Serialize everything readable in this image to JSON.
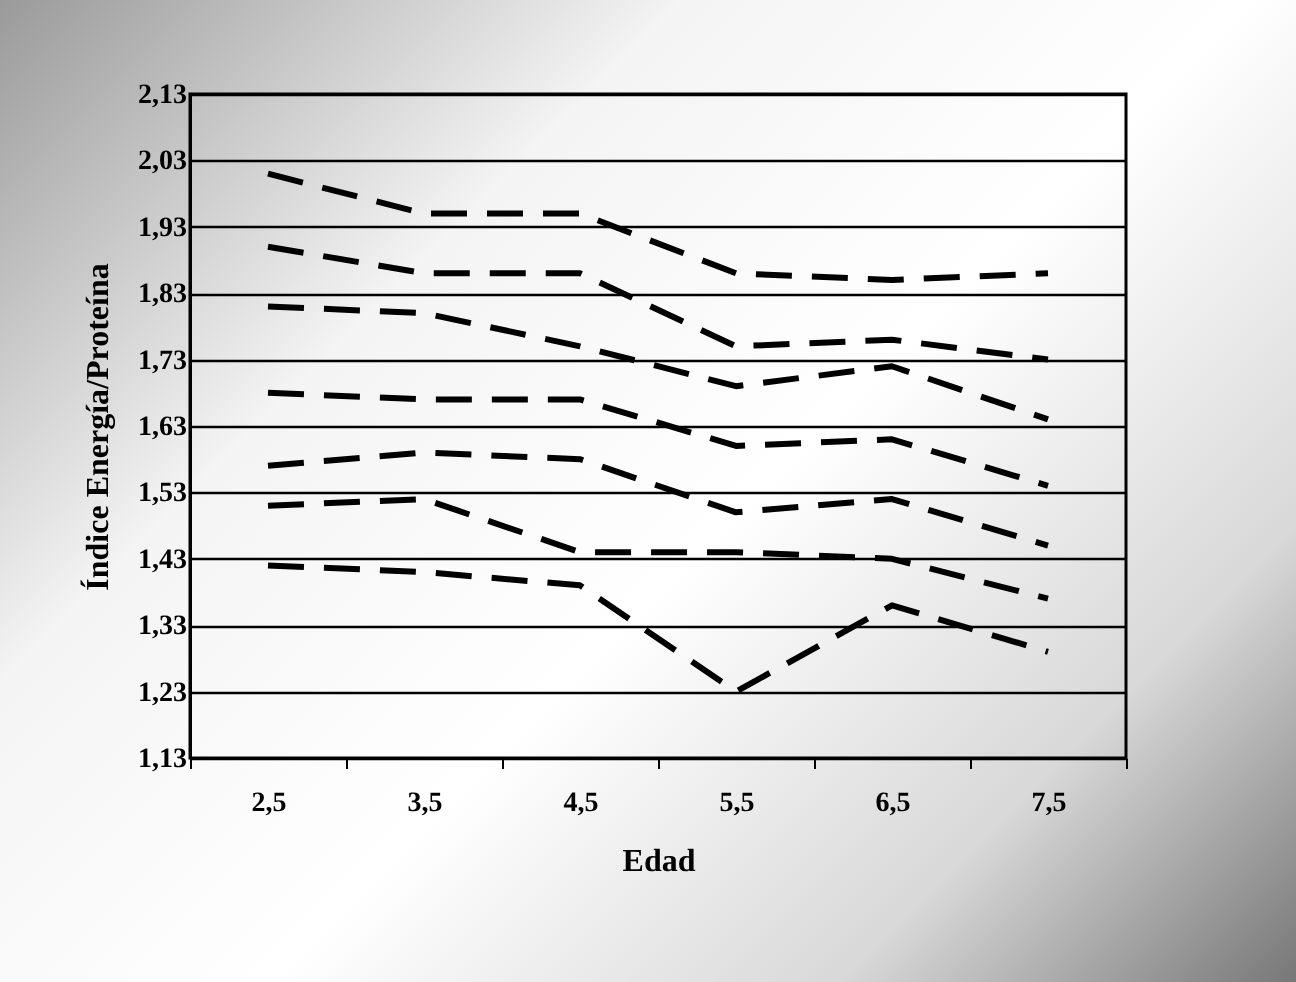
{
  "chart_data": {
    "type": "line",
    "xlabel": "Edad",
    "ylabel": "Índice Energía/Proteína",
    "categories": [
      "2,5",
      "3,5",
      "4,5",
      "5,5",
      "6,5",
      "7,5"
    ],
    "series": [
      {
        "color": "#000000",
        "values": [
          2.01,
          1.95,
          1.95,
          1.86,
          1.85,
          1.86
        ]
      },
      {
        "color": "#000000",
        "values": [
          1.9,
          1.86,
          1.86,
          1.75,
          1.76,
          1.73
        ]
      },
      {
        "color": "#000000",
        "values": [
          1.81,
          1.8,
          1.75,
          1.69,
          1.72,
          1.64
        ]
      },
      {
        "color": "#000000",
        "values": [
          1.68,
          1.67,
          1.67,
          1.6,
          1.61,
          1.54
        ]
      },
      {
        "color": "#000000",
        "values": [
          1.57,
          1.59,
          1.58,
          1.5,
          1.52,
          1.45
        ]
      },
      {
        "color": "#000000",
        "values": [
          1.51,
          1.52,
          1.44,
          1.44,
          1.43,
          1.37
        ]
      },
      {
        "color": "#000000",
        "values": [
          1.42,
          1.41,
          1.39,
          1.23,
          1.36,
          1.29
        ]
      }
    ],
    "ylim": [
      1.13,
      2.13
    ],
    "yticks": [
      {
        "value": 1.13,
        "label": "1,13"
      },
      {
        "value": 1.23,
        "label": "1,23"
      },
      {
        "value": 1.33,
        "label": "1,33"
      },
      {
        "value": 1.43,
        "label": "1,43"
      },
      {
        "value": 1.53,
        "label": "1,53"
      },
      {
        "value": 1.63,
        "label": "1,63"
      },
      {
        "value": 1.73,
        "label": "1,73"
      },
      {
        "value": 1.83,
        "label": "1,83"
      },
      {
        "value": 1.93,
        "label": "1,93"
      },
      {
        "value": 2.03,
        "label": "2,03"
      },
      {
        "value": 2.13,
        "label": "2,13"
      }
    ],
    "grid": "y",
    "line_style": "dashed",
    "marker": "none",
    "legend": false
  }
}
